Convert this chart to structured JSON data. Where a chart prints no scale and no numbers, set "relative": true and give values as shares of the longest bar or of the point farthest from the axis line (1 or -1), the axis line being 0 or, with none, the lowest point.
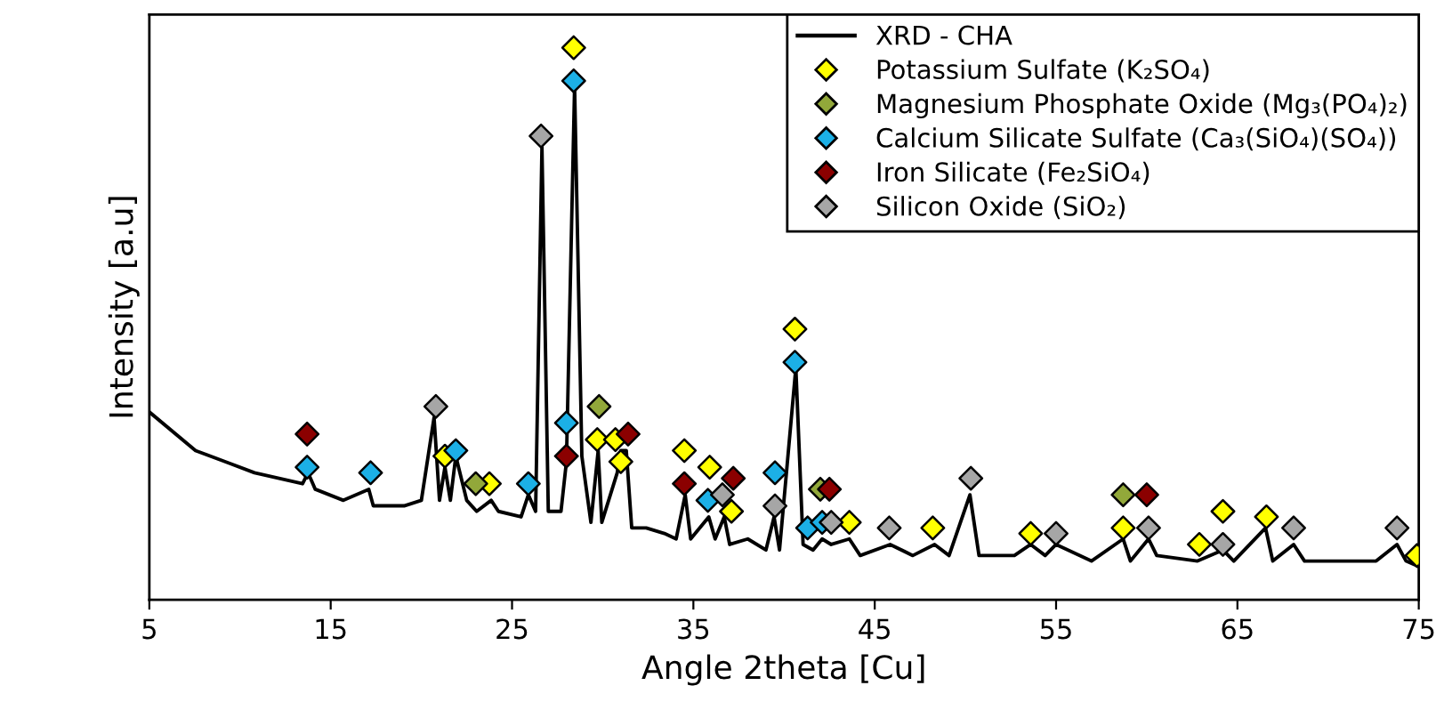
{
  "chart_data": {
    "type": "line",
    "relative": true,
    "xlabel": "Angle 2theta [Cu]",
    "ylabel": "Intensity [a.u]",
    "xlim": [
      5,
      75
    ],
    "xticks": [
      5,
      15,
      25,
      35,
      45,
      55,
      65,
      75
    ],
    "grid": false,
    "legend": "top right",
    "series": [
      {
        "name": "XRD - CHA",
        "color": "#000000",
        "marker": "none",
        "line_style": "solid",
        "x": [
          5.0,
          7.55,
          10.8,
          13.45,
          13.75,
          14.15,
          15.7,
          17.1,
          17.35,
          19.05,
          20.0,
          20.7,
          21.0,
          21.3,
          21.6,
          21.9,
          22.5,
          23.05,
          23.85,
          24.25,
          25.5,
          25.9,
          26.3,
          26.65,
          27.0,
          27.7,
          28.0,
          28.45,
          28.85,
          29.35,
          29.75,
          29.95,
          30.8,
          31.0,
          31.3,
          31.6,
          32.4,
          33.4,
          34.05,
          34.55,
          34.85,
          35.85,
          36.2,
          36.7,
          37.0,
          38.0,
          39.0,
          39.45,
          39.75,
          40.65,
          41.05,
          41.6,
          42.1,
          42.6,
          43.6,
          44.2,
          45.85,
          47.1,
          48.3,
          49.1,
          50.25,
          50.75,
          52.7,
          53.6,
          54.4,
          55.0,
          56.95,
          58.7,
          59.1,
          60.1,
          60.55,
          62.8,
          64.2,
          64.8,
          66.55,
          66.95,
          68.1,
          68.7,
          70.7,
          72.65,
          73.8,
          74.3,
          75.0
        ],
        "values": [
          0.34,
          0.27,
          0.23,
          0.21,
          0.23,
          0.2,
          0.18,
          0.2,
          0.17,
          0.17,
          0.18,
          0.33,
          0.18,
          0.24,
          0.18,
          0.26,
          0.18,
          0.16,
          0.18,
          0.16,
          0.15,
          0.19,
          0.16,
          0.82,
          0.16,
          0.16,
          0.25,
          0.93,
          0.26,
          0.14,
          0.27,
          0.14,
          0.23,
          0.27,
          0.27,
          0.13,
          0.13,
          0.12,
          0.11,
          0.19,
          0.11,
          0.15,
          0.11,
          0.15,
          0.1,
          0.11,
          0.09,
          0.15,
          0.09,
          0.42,
          0.1,
          0.09,
          0.11,
          0.1,
          0.11,
          0.08,
          0.1,
          0.08,
          0.1,
          0.08,
          0.19,
          0.08,
          0.08,
          0.1,
          0.08,
          0.1,
          0.07,
          0.11,
          0.07,
          0.11,
          0.08,
          0.07,
          0.09,
          0.07,
          0.13,
          0.07,
          0.1,
          0.07,
          0.07,
          0.07,
          0.1,
          0.07,
          0.06
        ]
      },
      {
        "name": "Potassium Sulfate (K₂SO₄)",
        "type": "scatter",
        "color": "#ffff00",
        "marker": "diamond",
        "x": [
          21.3,
          23.75,
          28.4,
          29.7,
          30.7,
          31.0,
          34.5,
          35.9,
          37.1,
          40.6,
          43.6,
          48.2,
          53.6,
          58.7,
          62.9,
          64.2,
          66.6,
          74.9
        ],
        "values": [
          0.26,
          0.21,
          1.0,
          0.29,
          0.29,
          0.25,
          0.27,
          0.24,
          0.16,
          0.49,
          0.14,
          0.13,
          0.12,
          0.13,
          0.1,
          0.16,
          0.15,
          0.08
        ]
      },
      {
        "name": "Magnesium Phosphate Oxide (Mg₃(PO₄)₂)",
        "type": "scatter",
        "color": "#92a83a",
        "marker": "diamond",
        "x": [
          23.0,
          29.8,
          42.0,
          58.7
        ],
        "values": [
          0.21,
          0.35,
          0.2,
          0.19
        ]
      },
      {
        "name": "Calcium Silicate Sulfate (Ca₃(SiO₄)(SO₄))",
        "type": "scatter",
        "color": "#1cb0e6",
        "marker": "diamond",
        "x": [
          13.7,
          17.2,
          21.9,
          25.9,
          28.0,
          28.4,
          35.8,
          39.5,
          40.6,
          41.3,
          42.1
        ],
        "values": [
          0.24,
          0.23,
          0.27,
          0.21,
          0.32,
          0.94,
          0.18,
          0.23,
          0.43,
          0.13,
          0.14
        ]
      },
      {
        "name": "Iron Silicate (Fe₂SiO₄)",
        "type": "scatter",
        "color": "#8b0000",
        "marker": "diamond",
        "x": [
          13.7,
          28.0,
          31.4,
          34.5,
          37.2,
          42.5,
          60.0
        ],
        "values": [
          0.3,
          0.26,
          0.3,
          0.21,
          0.22,
          0.2,
          0.19
        ]
      },
      {
        "name": "Silicon Oxide (SiO₂)",
        "type": "scatter",
        "color": "#a6a6a6",
        "marker": "diamond",
        "x": [
          20.8,
          26.6,
          36.6,
          39.5,
          42.6,
          45.8,
          50.3,
          55.0,
          60.1,
          64.2,
          68.1,
          73.8
        ],
        "values": [
          0.35,
          0.84,
          0.19,
          0.17,
          0.14,
          0.13,
          0.22,
          0.12,
          0.13,
          0.1,
          0.13,
          0.13
        ]
      }
    ]
  }
}
